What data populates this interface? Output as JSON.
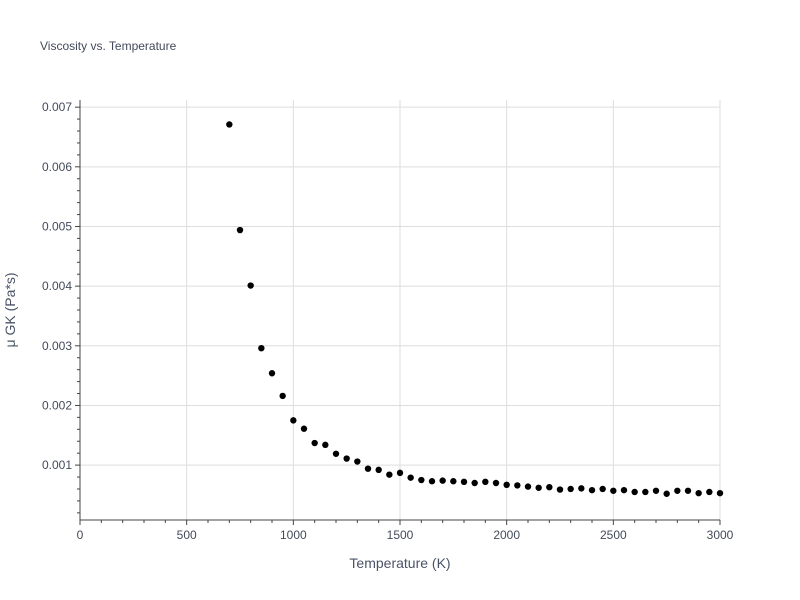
{
  "chart_data": {
    "type": "scatter",
    "title": "Viscosity vs. Temperature",
    "xlabel": "Temperature (K)",
    "ylabel": "μ GK (Pa*s)",
    "xlim": [
      0,
      3000
    ],
    "ylim": [
      8e-05,
      0.00712
    ],
    "x_ticks": [
      0,
      500,
      1000,
      1500,
      2000,
      2500,
      3000
    ],
    "x_tick_labels": [
      "0",
      "500",
      "1000",
      "1500",
      "2000",
      "2500",
      "3000"
    ],
    "y_ticks": [
      0.001,
      0.002,
      0.003,
      0.004,
      0.005,
      0.006,
      0.007
    ],
    "y_tick_labels": [
      "0.001",
      "0.002",
      "0.003",
      "0.004",
      "0.005",
      "0.006",
      "0.007"
    ],
    "grid": true,
    "marker_color": "#000000",
    "series": [
      {
        "name": "μ GK",
        "x": [
          700,
          750,
          800,
          850,
          900,
          950,
          1000,
          1050,
          1100,
          1150,
          1200,
          1250,
          1300,
          1350,
          1400,
          1450,
          1500,
          1550,
          1600,
          1650,
          1700,
          1750,
          1800,
          1850,
          1900,
          1950,
          2000,
          2050,
          2100,
          2150,
          2200,
          2250,
          2300,
          2350,
          2400,
          2450,
          2500,
          2550,
          2600,
          2650,
          2700,
          2750,
          2800,
          2850,
          2900,
          2950,
          3000
        ],
        "y": [
          0.00671,
          0.00494,
          0.00401,
          0.00296,
          0.00254,
          0.00216,
          0.00175,
          0.00161,
          0.00137,
          0.00134,
          0.00119,
          0.00111,
          0.00106,
          0.00094,
          0.00092,
          0.00084,
          0.00087,
          0.00079,
          0.00075,
          0.00073,
          0.00074,
          0.00073,
          0.00072,
          0.0007,
          0.00072,
          0.0007,
          0.00067,
          0.00066,
          0.00064,
          0.00062,
          0.00063,
          0.00059,
          0.0006,
          0.00061,
          0.00058,
          0.0006,
          0.00057,
          0.00058,
          0.00055,
          0.00055,
          0.00057,
          0.00052,
          0.00057,
          0.00057,
          0.00053,
          0.00055,
          0.00053
        ]
      }
    ]
  }
}
